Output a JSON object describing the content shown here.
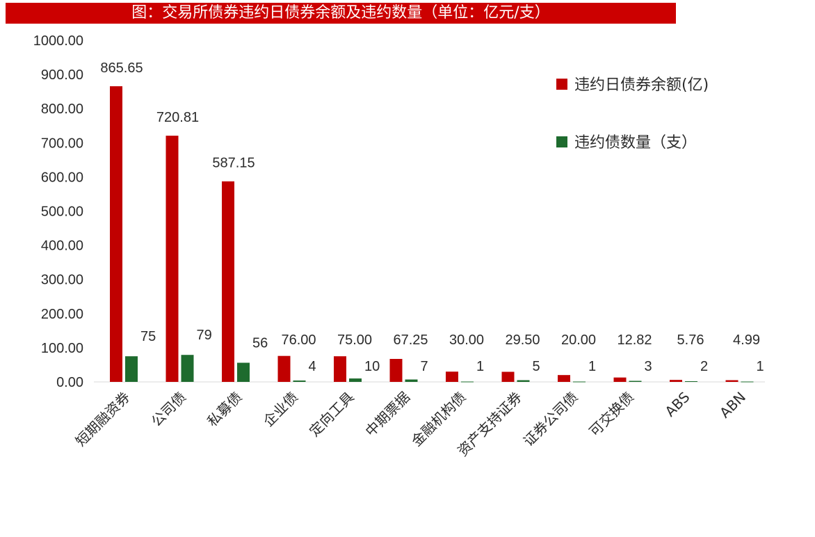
{
  "title": "图：交易所债券违约日债券余额及违约数量（单位：亿元/支）",
  "chart_data": {
    "type": "bar",
    "title": "图：交易所债券违约日债券余额及违约数量（单位：亿元/支）",
    "categories": [
      "短期融资券",
      "公司债",
      "私募债",
      "企业债",
      "定向工具",
      "中期票据",
      "金融机构债",
      "资产支持证券",
      "证券公司债",
      "可交换债",
      "ABS",
      "ABN"
    ],
    "series": [
      {
        "name": "违约日债券余额(亿)",
        "color": "#c00000",
        "values": [
          865.65,
          720.81,
          587.15,
          76.0,
          75.0,
          67.25,
          30.0,
          29.5,
          20.0,
          12.82,
          5.76,
          4.99
        ],
        "labels": [
          "865.65",
          "720.81",
          "587.15",
          "76.00",
          "75.00",
          "67.25",
          "30.00",
          "29.50",
          "20.00",
          "12.82",
          "5.76",
          "4.99"
        ]
      },
      {
        "name": "违约债数量（支）",
        "color": "#1e6b2e",
        "values": [
          75,
          79,
          56,
          4,
          10,
          7,
          1,
          5,
          1,
          3,
          2,
          1
        ],
        "labels": [
          "75",
          "79",
          "56",
          "4",
          "10",
          "7",
          "1",
          "5",
          "1",
          "3",
          "2",
          "1"
        ]
      }
    ],
    "ylim": [
      0,
      1000
    ],
    "yticks": [
      "0.00",
      "100.00",
      "200.00",
      "300.00",
      "400.00",
      "500.00",
      "600.00",
      "700.00",
      "800.00",
      "900.00",
      "1000.00"
    ],
    "legend_position": "right",
    "grid": false
  }
}
